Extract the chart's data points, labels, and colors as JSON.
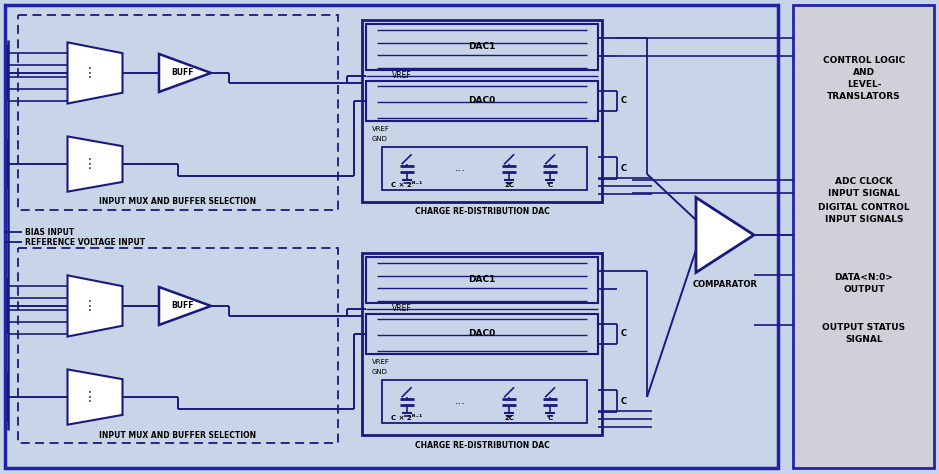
{
  "bg_color": "#c8d4e8",
  "outer_border_color": "#2222aa",
  "main_bg": "#c8d4e8",
  "right_panel_bg": "#d0d0d8",
  "line_color": "#1a1a7e",
  "dark_blue": "#2222aa",
  "right_labels": [
    [
      "CONTROL LOGIC",
      "AND",
      "LEVEL-",
      "TRANSLATORS"
    ],
    [
      "ADC CLOCK",
      "INPUT SIGNAL",
      "DIGITAL CONTROL",
      "INPUT SIGNALS"
    ],
    [
      "DATA<N:0>",
      "OUTPUT"
    ],
    [
      "OUTPUT STATUS",
      "SIGNAL"
    ]
  ],
  "mux_label": "INPUT MUX AND BUFFER SELECTION",
  "dac_label": "CHARGE RE-DISTRIBUTION DAC",
  "bias_label": "BIAS INPUT",
  "ref_label": "REFERENCE VOLTAGE INPUT",
  "comparator_label": "COMPARATOR",
  "dac1_label": "DAC1",
  "dac0_label": "DAC0",
  "vref_label": "VREF",
  "gnd_label": "GND",
  "buff_label": "BUFF"
}
